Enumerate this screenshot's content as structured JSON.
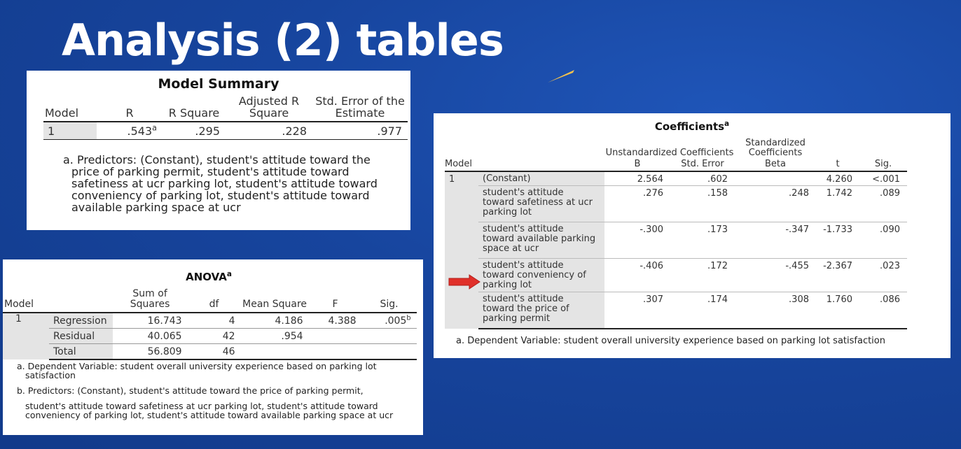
{
  "title": "Analysis (2) tables",
  "model_summary": {
    "caption": "Model Summary",
    "headers": {
      "model": "Model",
      "r": "R",
      "r_square": "R Square",
      "adj_r_square": "Adjusted R Square",
      "std_err": "Std. Error of the Estimate"
    },
    "row": {
      "model": "1",
      "r": ".543",
      "r_sup": "a",
      "r_square": ".295",
      "adj_r_square": ".228",
      "std_err": ".977"
    },
    "footnote_first": "a. Predictors: (Constant), student's attitude toward the",
    "footnote_rest": "price of parking permit, student's attitude toward safetiness at ucr parking lot, student's attitude toward conveniency of parking lot, student's attitude toward available parking space at ucr"
  },
  "anova": {
    "caption": "ANOVA",
    "caption_sup": "a",
    "headers": {
      "model": "Model",
      "sum_of_squares": "Sum of Squares",
      "df": "df",
      "mean_square": "Mean Square",
      "f": "F",
      "sig": "Sig."
    },
    "model_number": "1",
    "rows": [
      {
        "label": "Regression",
        "ss": "16.743",
        "df": "4",
        "ms": "4.186",
        "f": "4.388",
        "sig": ".005",
        "sig_sup": "b"
      },
      {
        "label": "Residual",
        "ss": "40.065",
        "df": "42",
        "ms": ".954",
        "f": "",
        "sig": ""
      },
      {
        "label": "Total",
        "ss": "56.809",
        "df": "46",
        "ms": "",
        "f": "",
        "sig": ""
      }
    ],
    "footnote_a_first": "a. Dependent Variable: student overall university experience based on parking lot",
    "footnote_a_rest": "satisfaction",
    "footnote_b_first": "b. Predictors: (Constant), student's attitude toward the price of parking permit,",
    "footnote_b_rest": "student's attitude toward safetiness at ucr parking lot, student's attitude toward conveniency of parking lot, student's attitude toward available parking space at ucr"
  },
  "coefficients": {
    "caption": "Coefficients",
    "caption_sup": "a",
    "headers": {
      "model": "Model",
      "unstandardized": "Unstandardized Coefficients",
      "standardized": "Standardized Coefficients",
      "b": "B",
      "std_error": "Std. Error",
      "beta": "Beta",
      "t": "t",
      "sig": "Sig."
    },
    "model_number": "1",
    "rows": [
      {
        "label": "(Constant)",
        "b": "2.564",
        "se": ".602",
        "beta": "",
        "t": "4.260",
        "sig": "<.001"
      },
      {
        "label": "student's attitude toward safetiness at ucr parking lot",
        "b": ".276",
        "se": ".158",
        "beta": ".248",
        "t": "1.742",
        "sig": ".089"
      },
      {
        "label": "student's attitude toward available parking space at ucr",
        "b": "-.300",
        "se": ".173",
        "beta": "-.347",
        "t": "-1.733",
        "sig": ".090"
      },
      {
        "label": "student's attitude toward conveniency of parking lot",
        "b": "-.406",
        "se": ".172",
        "beta": "-.455",
        "t": "-2.367",
        "sig": ".023"
      },
      {
        "label": "student's attitude toward the price of parking permit",
        "b": ".307",
        "se": ".174",
        "beta": ".308",
        "t": "1.760",
        "sig": ".086"
      }
    ],
    "footnote": "a. Dependent Variable: student overall university experience based on parking lot satisfaction"
  },
  "colors": {
    "background": "#17459e",
    "arrow": "#e0302a",
    "accent_stroke": "#f2c14e"
  },
  "icons": {
    "highlight_arrow": "right-arrow-icon"
  }
}
